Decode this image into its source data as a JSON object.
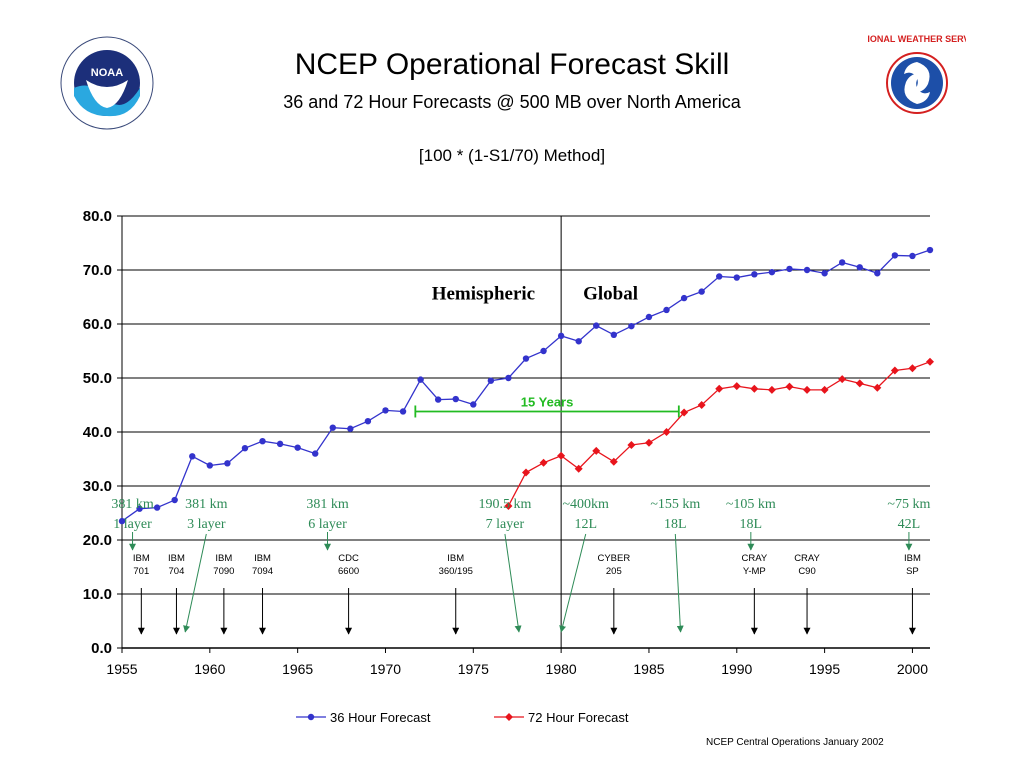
{
  "header": {
    "title": "NCEP Operational Forecast Skill",
    "subtitle": "36 and 72 Hour Forecasts @ 500 MB over North America",
    "method": "[100 * (1-S1/70) Method]",
    "logo_left_text": "NOAA",
    "logo_right_text": "NATIONAL WEATHER SERVICE"
  },
  "footer": {
    "credit": "NCEP Central Operations January 2002"
  },
  "colors": {
    "series_36": "#3333cc",
    "series_72": "#e8141c",
    "annotation_green": "#2e8b57",
    "bracket_green": "#22bb22",
    "grid": "#000000"
  },
  "chart_data": {
    "type": "line",
    "title": "NCEP Operational Forecast Skill",
    "subtitle": "36 and 72 Hour Forecasts @ 500 MB over North America",
    "xlim": [
      1955,
      2001
    ],
    "ylim": [
      0,
      80
    ],
    "xticks": [
      "1955",
      "1960",
      "1965",
      "1970",
      "1975",
      "1980",
      "1985",
      "1990",
      "1995",
      "2000"
    ],
    "yticks": [
      "0.0",
      "10.0",
      "20.0",
      "30.0",
      "40.0",
      "50.0",
      "60.0",
      "70.0",
      "80.0"
    ],
    "grid": "horizontal",
    "legend_position": "bottom",
    "series": [
      {
        "name": "36 Hour Forecast",
        "x": [
          1955,
          1956,
          1957,
          1958,
          1959,
          1960,
          1961,
          1962,
          1963,
          1964,
          1965,
          1966,
          1967,
          1968,
          1969,
          1970,
          1971,
          1972,
          1973,
          1974,
          1975,
          1976,
          1977,
          1978,
          1979,
          1980,
          1981,
          1982,
          1983,
          1984,
          1985,
          1986,
          1987,
          1988,
          1989,
          1990,
          1991,
          1992,
          1993,
          1994,
          1995,
          1996,
          1997,
          1998,
          1999,
          2000,
          2001
        ],
        "values": [
          23.5,
          25.8,
          26.0,
          27.4,
          35.5,
          33.8,
          34.2,
          37.0,
          38.3,
          37.8,
          37.1,
          36.0,
          40.8,
          40.6,
          42.0,
          44.0,
          43.8,
          49.7,
          46.0,
          46.1,
          45.1,
          49.5,
          50.0,
          53.6,
          55.0,
          57.8,
          56.8,
          59.7,
          58.0,
          59.6,
          61.3,
          62.6,
          64.8,
          66.0,
          68.8,
          68.6,
          69.2,
          69.6,
          70.2,
          70.0,
          69.4,
          71.4,
          70.5,
          69.4,
          72.7,
          72.6,
          73.7
        ]
      },
      {
        "name": "72 Hour Forecast",
        "x": [
          1977,
          1978,
          1979,
          1980,
          1981,
          1982,
          1983,
          1984,
          1985,
          1986,
          1987,
          1988,
          1989,
          1990,
          1991,
          1992,
          1993,
          1994,
          1995,
          1996,
          1997,
          1998,
          1999,
          2000,
          2001
        ],
        "values": [
          26.3,
          32.5,
          34.3,
          35.6,
          33.2,
          36.5,
          34.5,
          37.6,
          38.0,
          40.0,
          43.6,
          45.0,
          48.0,
          48.5,
          48.0,
          47.8,
          48.4,
          47.8,
          47.8,
          49.8,
          49.0,
          48.2,
          51.4,
          51.8,
          53.0
        ]
      }
    ],
    "divider_year": 1980,
    "era_labels": {
      "left": "Hemispheric",
      "right": "Global"
    },
    "span_annotation": {
      "label": "15 Years",
      "from": 1971.7,
      "to": 1986.7,
      "y": 43.8
    },
    "resolution_labels": [
      {
        "line1": "381 km",
        "line2": "1 layer",
        "x": 1955.6,
        "to_x": 1955.6
      },
      {
        "line1": "381 km",
        "line2": "3 layer",
        "x": 1959.8,
        "to_x": 1958.6
      },
      {
        "line1": "381 km",
        "line2": "6 layer",
        "x": 1966.7,
        "to_x": 1966.7
      },
      {
        "line1": "190.5 km",
        "line2": "7 layer",
        "x": 1976.8,
        "to_x": 1977.6
      },
      {
        "line1": "~400km",
        "line2": "12L",
        "x": 1981.4,
        "to_x": 1980.0
      },
      {
        "line1": "~155 km",
        "line2": "18L",
        "x": 1986.5,
        "to_x": 1986.8
      },
      {
        "line1": "~105 km",
        "line2": "18L",
        "x": 1990.8,
        "to_x": 1990.8
      },
      {
        "line1": "~75 km",
        "line2": "42L",
        "x": 1999.8,
        "to_x": 1999.8
      }
    ],
    "computer_labels": [
      {
        "line1": "IBM",
        "line2": "701",
        "x": 1956.1
      },
      {
        "line1": "IBM",
        "line2": "704",
        "x": 1958.1
      },
      {
        "line1": "IBM",
        "line2": "7090",
        "x": 1960.8
      },
      {
        "line1": "IBM",
        "line2": "7094",
        "x": 1963.0
      },
      {
        "line1": "CDC",
        "line2": "6600",
        "x": 1967.9
      },
      {
        "line1": "IBM",
        "line2": "360/195",
        "x": 1974.0
      },
      {
        "line1": "CYBER",
        "line2": "205",
        "x": 1983.0
      },
      {
        "line1": "CRAY",
        "line2": "Y-MP",
        "x": 1991.0
      },
      {
        "line1": "CRAY",
        "line2": "C90",
        "x": 1994.0
      },
      {
        "line1": "IBM",
        "line2": "SP",
        "x": 2000.0
      }
    ]
  }
}
